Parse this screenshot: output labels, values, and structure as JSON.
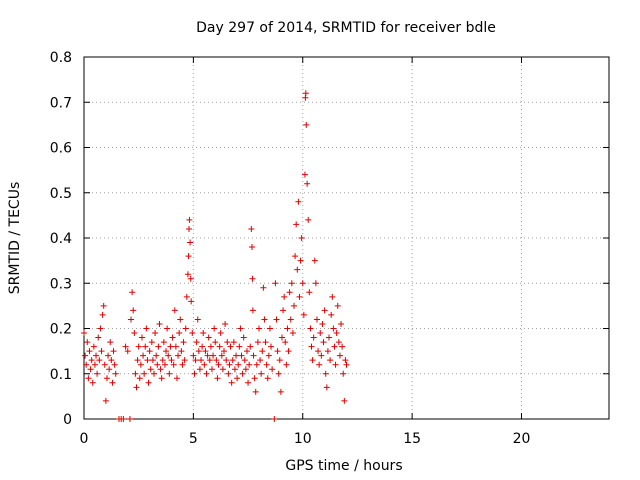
{
  "chart_data": {
    "type": "scatter",
    "title": "Day 297 of 2014, SRMTID for receiver bdle",
    "xlabel": "GPS time / hours",
    "ylabel": "SRMTID / TECUs",
    "xlim": [
      0,
      24
    ],
    "ylim": [
      0,
      0.8
    ],
    "xticks": [
      0,
      5,
      10,
      15,
      20
    ],
    "xtick_labels": [
      "0",
      "5",
      "10",
      "15",
      "20"
    ],
    "yticks": [
      0,
      0.1,
      0.2,
      0.3,
      0.4,
      0.5,
      0.6,
      0.7,
      0.8
    ],
    "ytick_labels": [
      "0",
      "0.1",
      "0.2",
      "0.3",
      "0.4",
      "0.5",
      "0.6",
      "0.7",
      "0.8"
    ],
    "grid": true,
    "marker": "+",
    "color": "#e00000",
    "series": [
      {
        "name": "SRMTID",
        "points": [
          [
            0.0,
            0.19
          ],
          [
            0.05,
            0.14
          ],
          [
            0.1,
            0.12
          ],
          [
            0.15,
            0.17
          ],
          [
            0.2,
            0.09
          ],
          [
            0.25,
            0.15
          ],
          [
            0.3,
            0.11
          ],
          [
            0.35,
            0.13
          ],
          [
            0.4,
            0.08
          ],
          [
            0.45,
            0.16
          ],
          [
            0.5,
            0.12
          ],
          [
            0.55,
            0.14
          ],
          [
            0.6,
            0.1
          ],
          [
            0.65,
            0.18
          ],
          [
            0.7,
            0.13
          ],
          [
            0.75,
            0.2
          ],
          [
            0.8,
            0.15
          ],
          [
            0.85,
            0.23
          ],
          [
            0.9,
            0.25
          ],
          [
            0.95,
            0.12
          ],
          [
            1.0,
            0.04
          ],
          [
            1.05,
            0.09
          ],
          [
            1.1,
            0.14
          ],
          [
            1.15,
            0.11
          ],
          [
            1.2,
            0.17
          ],
          [
            1.25,
            0.13
          ],
          [
            1.3,
            0.08
          ],
          [
            1.35,
            0.15
          ],
          [
            1.4,
            0.12
          ],
          [
            1.45,
            0.1
          ],
          [
            1.6,
            0.0
          ],
          [
            1.7,
            0.0
          ],
          [
            1.8,
            0.0
          ],
          [
            1.9,
            0.16
          ],
          [
            2.0,
            0.15
          ],
          [
            2.1,
            0.0
          ],
          [
            2.15,
            0.22
          ],
          [
            2.2,
            0.28
          ],
          [
            2.25,
            0.24
          ],
          [
            2.3,
            0.19
          ],
          [
            2.35,
            0.1
          ],
          [
            2.4,
            0.07
          ],
          [
            2.45,
            0.13
          ],
          [
            2.5,
            0.16
          ],
          [
            2.55,
            0.09
          ],
          [
            2.6,
            0.12
          ],
          [
            2.65,
            0.18
          ],
          [
            2.7,
            0.14
          ],
          [
            2.75,
            0.1
          ],
          [
            2.8,
            0.16
          ],
          [
            2.85,
            0.2
          ],
          [
            2.9,
            0.13
          ],
          [
            2.95,
            0.08
          ],
          [
            3.0,
            0.15
          ],
          [
            3.05,
            0.11
          ],
          [
            3.1,
            0.17
          ],
          [
            3.15,
            0.13
          ],
          [
            3.2,
            0.1
          ],
          [
            3.25,
            0.19
          ],
          [
            3.3,
            0.14
          ],
          [
            3.35,
            0.12
          ],
          [
            3.4,
            0.16
          ],
          [
            3.45,
            0.21
          ],
          [
            3.5,
            0.11
          ],
          [
            3.55,
            0.09
          ],
          [
            3.6,
            0.13
          ],
          [
            3.65,
            0.17
          ],
          [
            3.7,
            0.12
          ],
          [
            3.75,
            0.15
          ],
          [
            3.8,
            0.2
          ],
          [
            3.85,
            0.14
          ],
          [
            3.9,
            0.1
          ],
          [
            3.95,
            0.16
          ],
          [
            4.0,
            0.13
          ],
          [
            4.05,
            0.18
          ],
          [
            4.1,
            0.12
          ],
          [
            4.15,
            0.24
          ],
          [
            4.2,
            0.16
          ],
          [
            4.25,
            0.09
          ],
          [
            4.3,
            0.14
          ],
          [
            4.35,
            0.19
          ],
          [
            4.4,
            0.22
          ],
          [
            4.45,
            0.15
          ],
          [
            4.5,
            0.12
          ],
          [
            4.55,
            0.17
          ],
          [
            4.6,
            0.13
          ],
          [
            4.65,
            0.2
          ],
          [
            4.7,
            0.27
          ],
          [
            4.75,
            0.32
          ],
          [
            4.78,
            0.36
          ],
          [
            4.8,
            0.42
          ],
          [
            4.82,
            0.44
          ],
          [
            4.85,
            0.39
          ],
          [
            4.88,
            0.31
          ],
          [
            4.9,
            0.26
          ],
          [
            4.95,
            0.19
          ],
          [
            5.0,
            0.14
          ],
          [
            5.05,
            0.1
          ],
          [
            5.1,
            0.13
          ],
          [
            5.15,
            0.17
          ],
          [
            5.2,
            0.22
          ],
          [
            5.25,
            0.15
          ],
          [
            5.3,
            0.11
          ],
          [
            5.35,
            0.13
          ],
          [
            5.4,
            0.16
          ],
          [
            5.45,
            0.19
          ],
          [
            5.5,
            0.12
          ],
          [
            5.55,
            0.15
          ],
          [
            5.6,
            0.1
          ],
          [
            5.65,
            0.14
          ],
          [
            5.7,
            0.18
          ],
          [
            5.75,
            0.13
          ],
          [
            5.8,
            0.16
          ],
          [
            5.85,
            0.11
          ],
          [
            5.9,
            0.14
          ],
          [
            5.95,
            0.2
          ],
          [
            6.0,
            0.17
          ],
          [
            6.05,
            0.13
          ],
          [
            6.1,
            0.09
          ],
          [
            6.15,
            0.12
          ],
          [
            6.2,
            0.16
          ],
          [
            6.25,
            0.19
          ],
          [
            6.3,
            0.14
          ],
          [
            6.35,
            0.11
          ],
          [
            6.4,
            0.15
          ],
          [
            6.45,
            0.21
          ],
          [
            6.5,
            0.13
          ],
          [
            6.55,
            0.17
          ],
          [
            6.6,
            0.1
          ],
          [
            6.65,
            0.12
          ],
          [
            6.7,
            0.16
          ],
          [
            6.75,
            0.08
          ],
          [
            6.8,
            0.13
          ],
          [
            6.85,
            0.17
          ],
          [
            6.9,
            0.11
          ],
          [
            6.95,
            0.14
          ],
          [
            7.0,
            0.09
          ],
          [
            7.05,
            0.12
          ],
          [
            7.1,
            0.16
          ],
          [
            7.15,
            0.2
          ],
          [
            7.2,
            0.14
          ],
          [
            7.25,
            0.1
          ],
          [
            7.3,
            0.18
          ],
          [
            7.35,
            0.13
          ],
          [
            7.4,
            0.11
          ],
          [
            7.45,
            0.15
          ],
          [
            7.5,
            0.08
          ],
          [
            7.55,
            0.12
          ],
          [
            7.6,
            0.16
          ],
          [
            7.65,
            0.42
          ],
          [
            7.68,
            0.38
          ],
          [
            7.7,
            0.31
          ],
          [
            7.72,
            0.24
          ],
          [
            7.75,
            0.14
          ],
          [
            7.8,
            0.09
          ],
          [
            7.85,
            0.06
          ],
          [
            7.9,
            0.12
          ],
          [
            7.95,
            0.17
          ],
          [
            8.0,
            0.2
          ],
          [
            8.05,
            0.13
          ],
          [
            8.1,
            0.1
          ],
          [
            8.15,
            0.15
          ],
          [
            8.2,
            0.29
          ],
          [
            8.25,
            0.22
          ],
          [
            8.3,
            0.17
          ],
          [
            8.35,
            0.12
          ],
          [
            8.4,
            0.09
          ],
          [
            8.45,
            0.14
          ],
          [
            8.5,
            0.2
          ],
          [
            8.55,
            0.16
          ],
          [
            8.6,
            0.11
          ],
          [
            8.7,
            0.0
          ],
          [
            8.75,
            0.3
          ],
          [
            8.8,
            0.22
          ],
          [
            8.85,
            0.15
          ],
          [
            8.9,
            0.1
          ],
          [
            8.95,
            0.13
          ],
          [
            9.0,
            0.06
          ],
          [
            9.05,
            0.18
          ],
          [
            9.1,
            0.24
          ],
          [
            9.15,
            0.27
          ],
          [
            9.2,
            0.17
          ],
          [
            9.25,
            0.12
          ],
          [
            9.3,
            0.2
          ],
          [
            9.35,
            0.15
          ],
          [
            9.4,
            0.28
          ],
          [
            9.45,
            0.22
          ],
          [
            9.5,
            0.3
          ],
          [
            9.55,
            0.19
          ],
          [
            9.6,
            0.25
          ],
          [
            9.65,
            0.36
          ],
          [
            9.7,
            0.43
          ],
          [
            9.75,
            0.33
          ],
          [
            9.8,
            0.48
          ],
          [
            9.85,
            0.27
          ],
          [
            9.9,
            0.35
          ],
          [
            9.95,
            0.4
          ],
          [
            10.0,
            0.3
          ],
          [
            10.05,
            0.23
          ],
          [
            10.1,
            0.54
          ],
          [
            10.12,
            0.71
          ],
          [
            10.14,
            0.72
          ],
          [
            10.16,
            0.65
          ],
          [
            10.2,
            0.52
          ],
          [
            10.25,
            0.44
          ],
          [
            10.3,
            0.28
          ],
          [
            10.35,
            0.2
          ],
          [
            10.4,
            0.16
          ],
          [
            10.45,
            0.13
          ],
          [
            10.5,
            0.18
          ],
          [
            10.55,
            0.35
          ],
          [
            10.6,
            0.3
          ],
          [
            10.65,
            0.22
          ],
          [
            10.7,
            0.15
          ],
          [
            10.75,
            0.12
          ],
          [
            10.8,
            0.19
          ],
          [
            10.85,
            0.14
          ],
          [
            10.9,
            0.21
          ],
          [
            10.95,
            0.17
          ],
          [
            11.0,
            0.24
          ],
          [
            11.05,
            0.1
          ],
          [
            11.1,
            0.07
          ],
          [
            11.15,
            0.15
          ],
          [
            11.2,
            0.18
          ],
          [
            11.25,
            0.13
          ],
          [
            11.3,
            0.23
          ],
          [
            11.35,
            0.27
          ],
          [
            11.4,
            0.2
          ],
          [
            11.45,
            0.16
          ],
          [
            11.5,
            0.12
          ],
          [
            11.55,
            0.19
          ],
          [
            11.6,
            0.25
          ],
          [
            11.65,
            0.17
          ],
          [
            11.7,
            0.14
          ],
          [
            11.75,
            0.21
          ],
          [
            11.8,
            0.16
          ],
          [
            11.85,
            0.1
          ],
          [
            11.9,
            0.04
          ],
          [
            11.95,
            0.13
          ],
          [
            12.0,
            0.12
          ]
        ]
      }
    ]
  }
}
